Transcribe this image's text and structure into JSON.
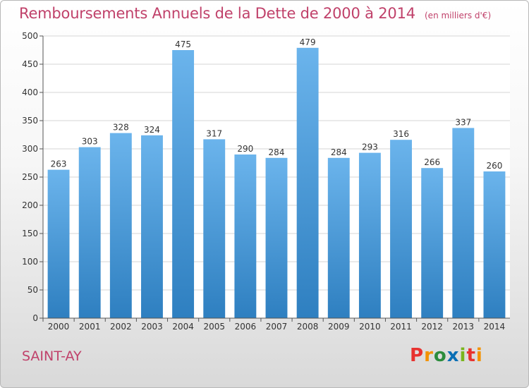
{
  "header": {
    "title": "Remboursements Annuels de la Dette de 2000 à 2014",
    "subtitle": "(en milliers d'€)"
  },
  "footer": {
    "commune": "SAINT-AY",
    "logo": "Proxiti",
    "logo_colors": [
      "#e8322f",
      "#f39200",
      "#2c8c3c",
      "#0a6fb5",
      "#7ab51d",
      "#e8322f",
      "#f39200"
    ]
  },
  "chart_data": {
    "type": "bar",
    "categories": [
      "2000",
      "2001",
      "2002",
      "2003",
      "2004",
      "2005",
      "2006",
      "2007",
      "2008",
      "2009",
      "2010",
      "2011",
      "2012",
      "2013",
      "2014"
    ],
    "values": [
      263,
      303,
      328,
      324,
      475,
      317,
      290,
      284,
      479,
      284,
      293,
      316,
      266,
      337,
      260
    ],
    "ylim": [
      0,
      500
    ],
    "yticks": [
      0,
      50,
      100,
      150,
      200,
      250,
      300,
      350,
      400,
      450,
      500
    ],
    "grid": true,
    "bar_color_top": "#6bb4ec",
    "bar_color_bottom": "#2e7fc0"
  }
}
